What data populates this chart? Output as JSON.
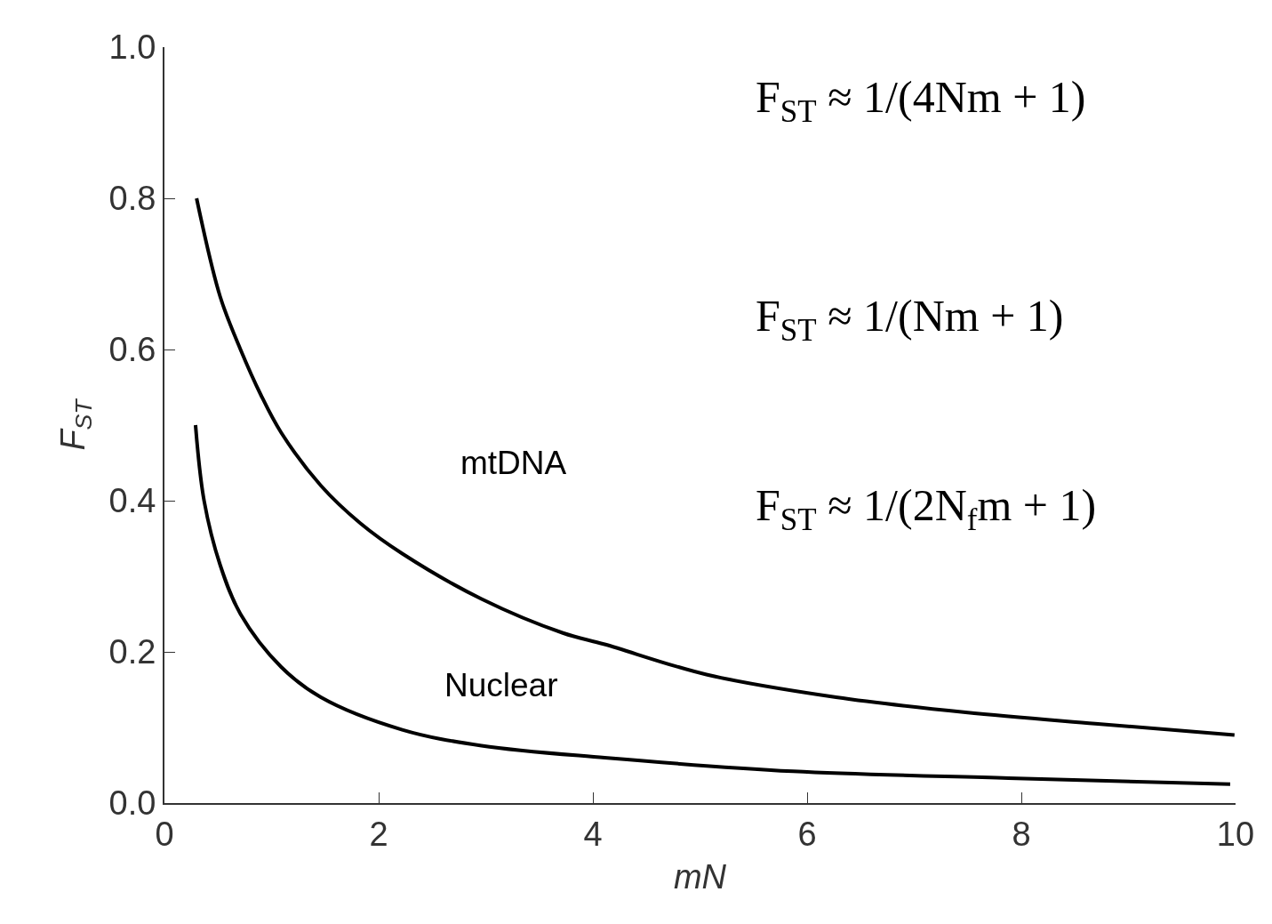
{
  "chart_data": {
    "type": "line",
    "xlabel": "mN",
    "ylabel": "F$_{ST}$",
    "xlim": [
      0,
      10
    ],
    "ylim": [
      0,
      1.0
    ],
    "xticks": [
      0,
      2,
      4,
      6,
      8,
      10
    ],
    "yticks": [
      {
        "value": 0,
        "label": "0.0"
      },
      0.2,
      0.4,
      0.6,
      0.8,
      {
        "value": 1,
        "label": "1.0"
      }
    ],
    "legend": false,
    "marker": "none",
    "line_style": "solid",
    "series": [
      {
        "name": "mtDNA",
        "color": "#000000",
        "x": [
          0.3,
          0.52,
          0.71,
          0.9,
          1.09,
          1.46,
          1.83,
          2.22,
          2.96,
          3.72,
          4.11,
          5.06,
          6.27,
          7.48,
          8.69,
          9.99
        ],
        "values": [
          0.8,
          0.67,
          0.6,
          0.54,
          0.49,
          0.42,
          0.37,
          0.33,
          0.27,
          0.225,
          0.21,
          0.17,
          0.14,
          0.12,
          0.105,
          0.09
        ]
      },
      {
        "name": "Nuclear",
        "color": "#000000",
        "x": [
          0.29,
          0.37,
          0.52,
          0.71,
          1.09,
          1.46,
          2.22,
          2.96,
          4.11,
          5.87,
          7.88,
          9.95
        ],
        "values": [
          0.5,
          0.4,
          0.315,
          0.25,
          0.18,
          0.14,
          0.097,
          0.076,
          0.06,
          0.042,
          0.033,
          0.025
        ]
      }
    ],
    "annotations": [
      "F$_{ST}$ ≈ 1/(4Nm + 1)",
      "F$_{ST}$ ≈ 1/(Nm + 1)",
      "F$_{ST}$ ≈ 1/(2N$_{f}$m + 1)"
    ]
  }
}
